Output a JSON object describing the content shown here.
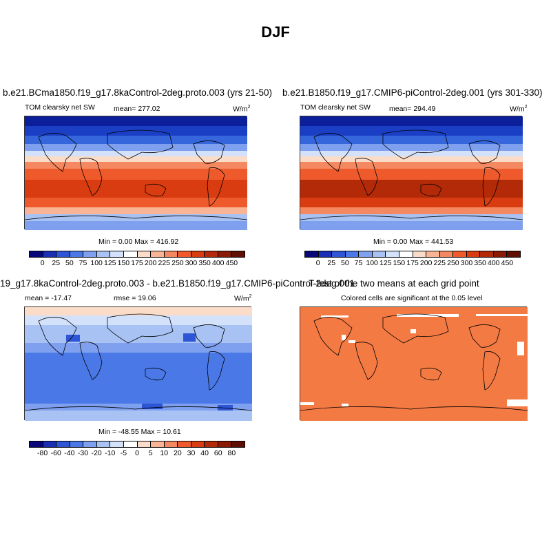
{
  "figure_title": "DJF",
  "panels": [
    {
      "title": "b.e21.BCma1850.f19_g17.8kaControl-2deg.proto.003 (yrs 21-50)",
      "variable": "TOM clearsky net SW",
      "mean": "mean= 277.02",
      "units": "W/m",
      "units_sup": "2",
      "minmax": "Min =   0.00 Max = 416.92"
    },
    {
      "title": "b.e21.B1850.f19_g17.CMIP6-piControl-2deg.001 (yrs 301-330)",
      "variable": "TOM clearsky net SW",
      "mean": "mean= 294.49",
      "units": "W/m",
      "units_sup": "2",
      "minmax": "Min =   0.00 Max = 441.53"
    },
    {
      "title": "19_g17.8kaControl-2deg.proto.003 - b.e21.B1850.f19_g17.CMIP6-piControl-2deg.001",
      "mean": "mean = -17.47",
      "rmse": "rmse =  19.06",
      "units": "W/m",
      "units_sup": "2",
      "minmax": "Min = -48.55 Max =  10.61"
    },
    {
      "title": "T-test of the two means at each grid point",
      "subtitle": "Colored cells are significant at the 0.05 level"
    }
  ],
  "colorbar_abs": {
    "labels": [
      "0",
      "25",
      "50",
      "75",
      "100",
      "125",
      "150",
      "175",
      "200",
      "225",
      "250",
      "300",
      "350",
      "400",
      "450"
    ],
    "colors": [
      "#08087a",
      "#1a2fb4",
      "#2d55d6",
      "#4a78e6",
      "#7ea0ee",
      "#a8c2f4",
      "#d3e1fa",
      "#ffffff",
      "#fbdcc8",
      "#f8b494",
      "#f48860",
      "#ee5a2c",
      "#d93c10",
      "#b32a08",
      "#8a1a04",
      "#5e0e02"
    ]
  },
  "colorbar_diff": {
    "labels": [
      "-80",
      "-60",
      "-40",
      "-30",
      "-20",
      "-10",
      "-5",
      "0",
      "5",
      "10",
      "20",
      "30",
      "40",
      "60",
      "80"
    ],
    "colors": [
      "#08087a",
      "#1a2fb4",
      "#2d55d6",
      "#4a78e6",
      "#7ea0ee",
      "#a8c2f4",
      "#d3e1fa",
      "#ffffff",
      "#fbdcc8",
      "#f8b494",
      "#f48860",
      "#ee5a2c",
      "#d93c10",
      "#b32a08",
      "#8a1a04",
      "#5e0e02"
    ]
  },
  "colors": {
    "ttest_fill": "#f47a44",
    "diff_base": "#4a78e6"
  }
}
